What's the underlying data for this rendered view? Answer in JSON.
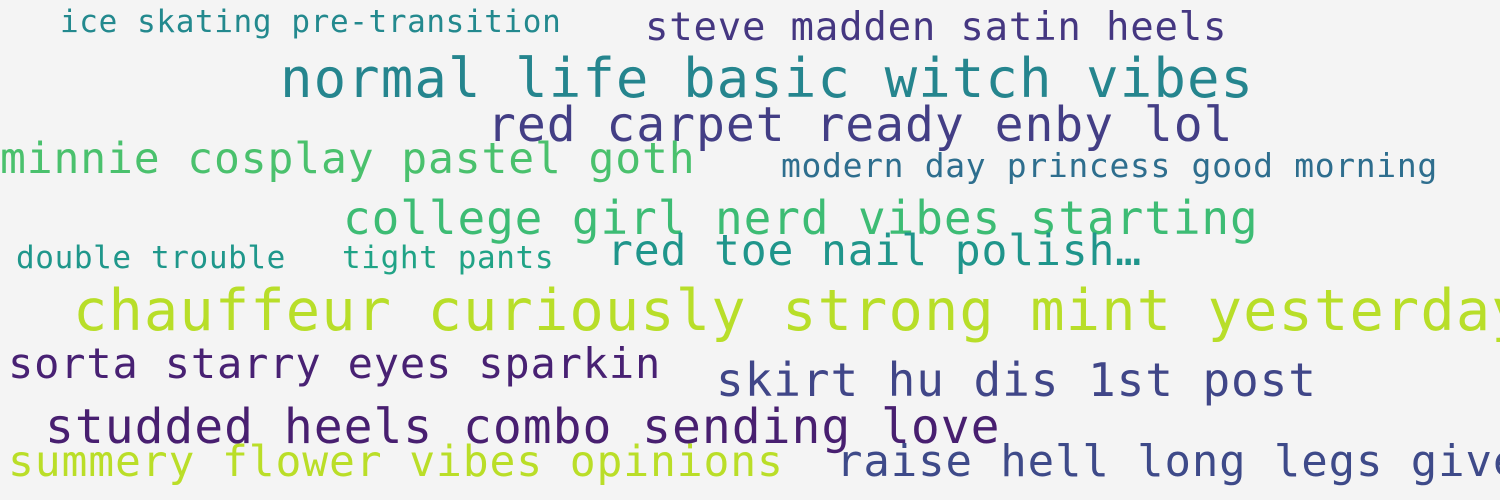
{
  "background": "#f4f4f4",
  "words": [
    {
      "text": "ice skating pre-transition",
      "color": "#23898e"
    },
    {
      "text": "steve madden satin heels",
      "color": "#453781"
    },
    {
      "text": "normal life basic witch vibes",
      "color": "#25858e"
    },
    {
      "text": "red carpet ready enby lol",
      "color": "#433e85"
    },
    {
      "text": "minnie cosplay pastel goth",
      "color": "#4ac16d"
    },
    {
      "text": "modern day princess good morning",
      "color": "#2e6e8e"
    },
    {
      "text": "college girl nerd vibes starting",
      "color": "#3dbc74"
    },
    {
      "text": "double trouble",
      "color": "#1f978b"
    },
    {
      "text": "tight pants",
      "color": "#20a386"
    },
    {
      "text": "red toe nail polish…",
      "color": "#1f958b"
    },
    {
      "text": "chauffeur curiously strong mint yesterday",
      "color": "#b8de29"
    },
    {
      "text": "sorta starry eyes sparkin",
      "color": "#482173"
    },
    {
      "text": "skirt hu dis 1st post",
      "color": "#404688"
    },
    {
      "text": "studded heels combo sending love",
      "color": "#481f70"
    },
    {
      "text": "summery flower vibes opinions",
      "color": "#bade28"
    },
    {
      "text": "raise hell long legs give",
      "color": "#3e4a89"
    }
  ]
}
